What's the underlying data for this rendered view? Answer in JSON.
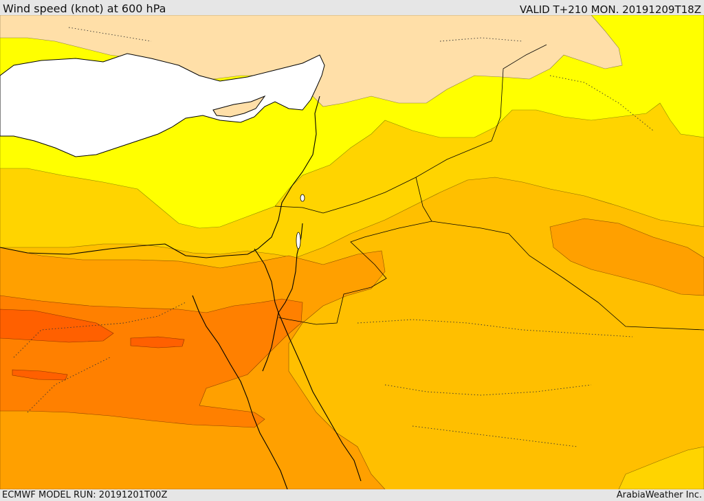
{
  "header": {
    "title": "Wind speed (knot) at 600 hPa",
    "valid": "VALID T+210 MON. 20191209T18Z"
  },
  "footer": {
    "model_run": "ECMWF MODEL RUN: 20191201T00Z",
    "credit": "ArabiaWeather Inc."
  },
  "palette": {
    "sea": "#ffffff",
    "peach": "#ffdfa8",
    "yellow": "#ffff00",
    "gold": "#ffd400",
    "amber": "#ffbf00",
    "orange": "#ffa000",
    "dark_orange": "#ff8000",
    "red_orange": "#ff6000",
    "coast": "#000000"
  }
}
